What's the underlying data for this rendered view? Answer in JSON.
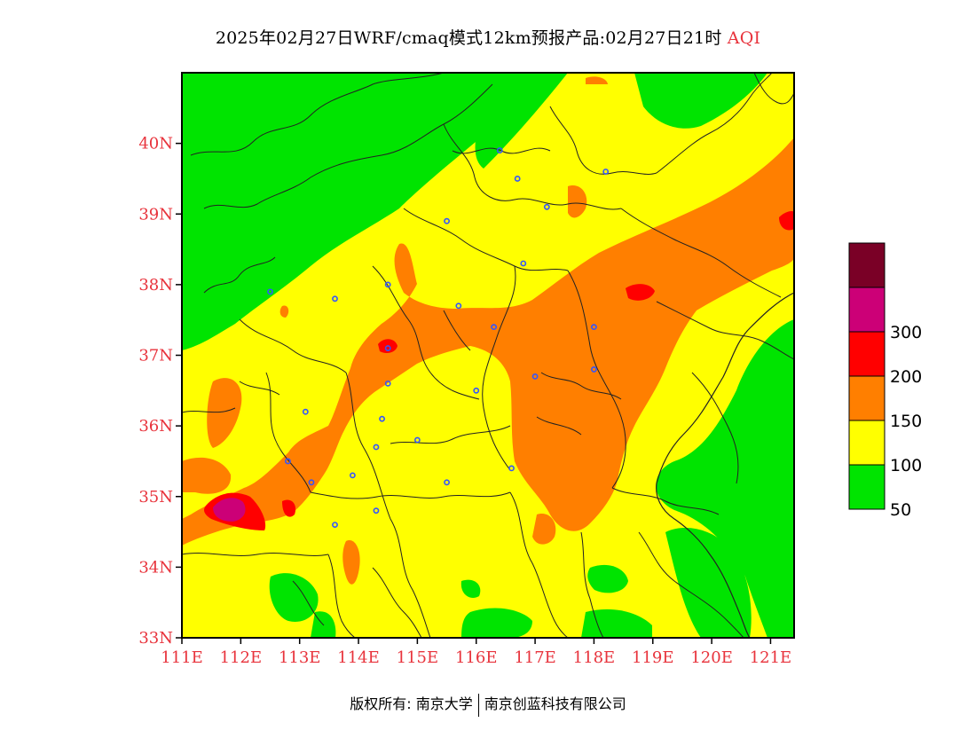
{
  "title": {
    "main": "2025年02月27日WRF/cmaq模式12km预报产品:02月27日21时",
    "product": "AQI"
  },
  "colors": {
    "title_accent": "#e8333c",
    "axis_label": "#e8333c",
    "boundary": "#222222",
    "city_marker": "#3355ff"
  },
  "map": {
    "projection": "lat-lon",
    "lon_range": [
      111.0,
      121.4
    ],
    "lat_range": [
      33.0,
      41.0
    ],
    "x_ticks": [
      {
        "value": 111,
        "label": "111E"
      },
      {
        "value": 112,
        "label": "112E"
      },
      {
        "value": 113,
        "label": "113E"
      },
      {
        "value": 114,
        "label": "114E"
      },
      {
        "value": 115,
        "label": "115E"
      },
      {
        "value": 116,
        "label": "116E"
      },
      {
        "value": 117,
        "label": "117E"
      },
      {
        "value": 118,
        "label": "118E"
      },
      {
        "value": 119,
        "label": "119E"
      },
      {
        "value": 120,
        "label": "120E"
      },
      {
        "value": 121,
        "label": "121E"
      }
    ],
    "y_ticks": [
      {
        "value": 33,
        "label": "33N"
      },
      {
        "value": 34,
        "label": "34N"
      },
      {
        "value": 35,
        "label": "35N"
      },
      {
        "value": 36,
        "label": "36N"
      },
      {
        "value": 37,
        "label": "37N"
      },
      {
        "value": 38,
        "label": "38N"
      },
      {
        "value": 39,
        "label": "39N"
      },
      {
        "value": 40,
        "label": "40N"
      }
    ],
    "cities": [
      {
        "lon": 116.4,
        "lat": 39.9
      },
      {
        "lon": 117.2,
        "lat": 39.1
      },
      {
        "lon": 118.2,
        "lat": 39.6
      },
      {
        "lon": 116.7,
        "lat": 39.5
      },
      {
        "lon": 115.5,
        "lat": 38.9
      },
      {
        "lon": 116.8,
        "lat": 38.3
      },
      {
        "lon": 114.5,
        "lat": 38.0
      },
      {
        "lon": 112.5,
        "lat": 37.9
      },
      {
        "lon": 113.6,
        "lat": 37.8
      },
      {
        "lon": 115.7,
        "lat": 37.7
      },
      {
        "lon": 116.3,
        "lat": 37.4
      },
      {
        "lon": 114.5,
        "lat": 37.1
      },
      {
        "lon": 118.0,
        "lat": 37.4
      },
      {
        "lon": 118.0,
        "lat": 36.8
      },
      {
        "lon": 117.0,
        "lat": 36.7
      },
      {
        "lon": 114.5,
        "lat": 36.6
      },
      {
        "lon": 116.0,
        "lat": 36.5
      },
      {
        "lon": 113.1,
        "lat": 36.2
      },
      {
        "lon": 114.4,
        "lat": 36.1
      },
      {
        "lon": 115.0,
        "lat": 35.8
      },
      {
        "lon": 114.3,
        "lat": 35.7
      },
      {
        "lon": 112.8,
        "lat": 35.5
      },
      {
        "lon": 113.2,
        "lat": 35.2
      },
      {
        "lon": 113.9,
        "lat": 35.3
      },
      {
        "lon": 115.5,
        "lat": 35.2
      },
      {
        "lon": 116.6,
        "lat": 35.4
      },
      {
        "lon": 114.3,
        "lat": 34.8
      },
      {
        "lon": 113.6,
        "lat": 34.6
      }
    ]
  },
  "legend": {
    "levels": [
      {
        "label": "",
        "color": "#7a0026"
      },
      {
        "label": "300",
        "color": "#cc0077"
      },
      {
        "label": "200",
        "color": "#ff0000"
      },
      {
        "label": "150",
        "color": "#ff7f00"
      },
      {
        "label": "100",
        "color": "#ffff00"
      },
      {
        "label": "50",
        "color": "#00e400"
      }
    ]
  },
  "footer": {
    "copyright": "版权所有: 南京大学",
    "company": "南京创蓝科技有限公司"
  }
}
